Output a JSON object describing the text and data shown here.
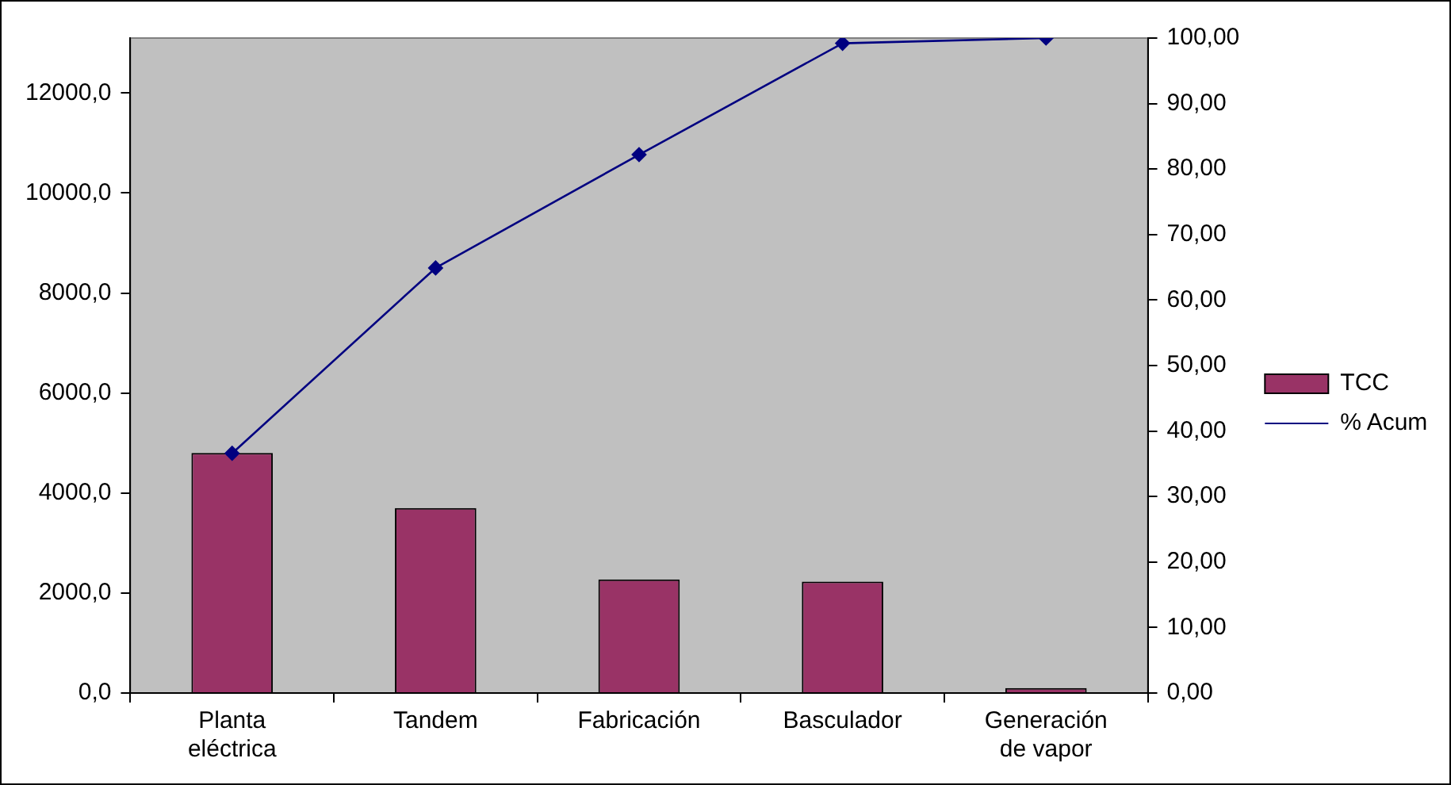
{
  "chart_data": {
    "type": "bar",
    "categories": [
      "Planta eléctrica",
      "Tandem",
      "Fabricación",
      "Basculador",
      "Generación de vapor"
    ],
    "series": [
      {
        "name": "TCC",
        "color": "#993366",
        "values": [
          4800,
          3700,
          2270,
          2230,
          100
        ]
      },
      {
        "name": "% Acum",
        "type": "line",
        "axis": "y2",
        "color": "#000080",
        "marker": "diamond",
        "values": [
          36.6,
          64.9,
          82.2,
          99.2,
          100
        ]
      }
    ],
    "ylim": [
      0,
      13100
    ],
    "yticks": [
      {
        "value": 0,
        "label": "0,0"
      },
      {
        "value": 2000,
        "label": "2000,0"
      },
      {
        "value": 4000,
        "label": "4000,0"
      },
      {
        "value": 6000,
        "label": "6000,0"
      },
      {
        "value": 8000,
        "label": "8000,0"
      },
      {
        "value": 10000,
        "label": "10000,0"
      },
      {
        "value": 12000,
        "label": "12000,0"
      }
    ],
    "y2lim": [
      0,
      100
    ],
    "y2ticks": [
      {
        "value": 0,
        "label": "0,00"
      },
      {
        "value": 10,
        "label": "10,00"
      },
      {
        "value": 20,
        "label": "20,00"
      },
      {
        "value": 30,
        "label": "30,00"
      },
      {
        "value": 40,
        "label": "40,00"
      },
      {
        "value": 50,
        "label": "50,00"
      },
      {
        "value": 60,
        "label": "60,00"
      },
      {
        "value": 70,
        "label": "70,00"
      },
      {
        "value": 80,
        "label": "80,00"
      },
      {
        "value": 90,
        "label": "90,00"
      },
      {
        "value": 100,
        "label": "100,00"
      }
    ],
    "grid": false,
    "legend": "right"
  }
}
